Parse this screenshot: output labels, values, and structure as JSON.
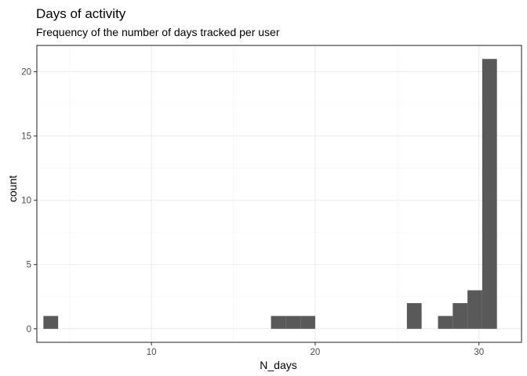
{
  "chart_data": {
    "type": "bar",
    "title": "Days of activity",
    "subtitle": "Frequency of the number of days tracked per user",
    "xlabel": "N_days",
    "ylabel": "count",
    "xlim": [
      3.0,
      32.6
    ],
    "ylim": [
      -1.05,
      22.05
    ],
    "x_ticks": [
      10,
      20,
      30
    ],
    "y_ticks": [
      0,
      5,
      10,
      15,
      20
    ],
    "x_tick_labels": [
      "10",
      "20",
      "30"
    ],
    "y_tick_labels": [
      "0",
      "5",
      "10",
      "15",
      "20"
    ],
    "grid": true,
    "bar_color": "#595959",
    "bins": [
      {
        "x_start": 3.4,
        "x_end": 4.3,
        "count": 1
      },
      {
        "x_start": 17.3,
        "x_end": 18.2,
        "count": 1
      },
      {
        "x_start": 18.2,
        "x_end": 19.1,
        "count": 1
      },
      {
        "x_start": 19.1,
        "x_end": 20.0,
        "count": 1
      },
      {
        "x_start": 25.6,
        "x_end": 26.5,
        "count": 2
      },
      {
        "x_start": 27.5,
        "x_end": 28.4,
        "count": 1
      },
      {
        "x_start": 28.4,
        "x_end": 29.3,
        "count": 2
      },
      {
        "x_start": 29.3,
        "x_end": 30.2,
        "count": 3
      },
      {
        "x_start": 30.2,
        "x_end": 31.1,
        "count": 21
      }
    ]
  }
}
